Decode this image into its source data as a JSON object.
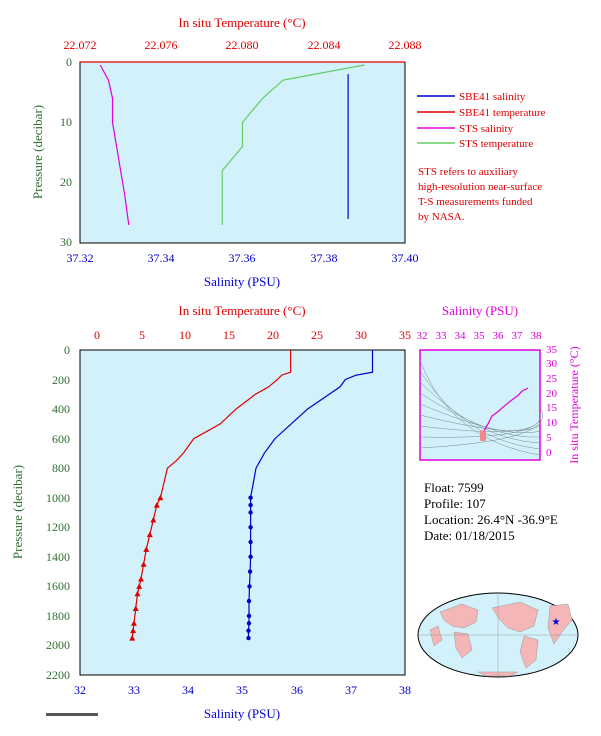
{
  "colors": {
    "plot_bg": "#d3f1fa",
    "red": "#dd0000",
    "blue": "#0000cc",
    "magenta": "#dd00dd",
    "green": "#66cc66",
    "pink": "#f08a8a",
    "dark_green": "#2f6f2f",
    "black": "#000000"
  },
  "top": {
    "top_axis_title": "In situ Temperature (°C)",
    "bottom_axis_title": "Salinity (PSU)",
    "y_axis_title": "Pressure (decibar)",
    "temp_ticks": [
      "22.072",
      "22.076",
      "22.080",
      "22.084",
      "22.088"
    ],
    "sal_ticks": [
      "37.32",
      "37.34",
      "37.36",
      "37.38",
      "37.40"
    ],
    "p_ticks": [
      "0",
      "10",
      "20",
      "30"
    ],
    "legend": [
      {
        "label": "SBE41 salinity",
        "color": "#0000cc"
      },
      {
        "label": "SBE41 temperature",
        "color": "#dd0000"
      },
      {
        "label": "STS salinity",
        "color": "#dd00dd"
      },
      {
        "label": "STS temperature",
        "color": "#66cc66"
      }
    ],
    "note": [
      "STS refers to auxiliary",
      "high-resolution near-surface",
      "T-S measurements funded",
      "by NASA."
    ]
  },
  "main": {
    "top_axis_title": "In situ Temperature (°C)",
    "bottom_axis_title": "Salinity (PSU)",
    "y_axis_title": "Pressure (decibar)",
    "temp_ticks": [
      "0",
      "5",
      "10",
      "15",
      "20",
      "25",
      "30",
      "35"
    ],
    "sal_ticks": [
      "32",
      "33",
      "34",
      "35",
      "36",
      "37",
      "38"
    ],
    "p_ticks": [
      "0",
      "200",
      "400",
      "600",
      "800",
      "1000",
      "1200",
      "1400",
      "1600",
      "1800",
      "2000",
      "2200"
    ]
  },
  "ts": {
    "top_axis_title": "Salinity (PSU)",
    "right_axis_title": "In situ Temperature (°C)",
    "sal_ticks": [
      "32",
      "33",
      "34",
      "35",
      "36",
      "37",
      "38"
    ],
    "temp_ticks": [
      "0",
      "5",
      "10",
      "15",
      "20",
      "25",
      "30",
      "35"
    ]
  },
  "info": {
    "float": "Float:  7599",
    "profile": "Profile:  107",
    "location": "Location:  26.4°N  -36.9°E",
    "date": "Date:  01/18/2015"
  },
  "map": {
    "marker": "★"
  },
  "chart_data": [
    {
      "type": "line",
      "title": "",
      "ylabel": "Pressure (decibar)",
      "xlabel_top": "In situ Temperature (°C)",
      "xlabel_bottom": "Salinity (PSU)",
      "ylim": [
        30,
        0
      ],
      "xlim_salinity": [
        37.32,
        37.4
      ],
      "xlim_temperature": [
        22.072,
        22.088
      ],
      "series": [
        {
          "name": "SBE41 salinity",
          "x": [
            37.386,
            37.386,
            37.386,
            37.386,
            37.386,
            37.386
          ],
          "y": [
            2,
            6,
            10,
            14,
            20,
            26
          ]
        },
        {
          "name": "SBE41 temperature",
          "x": [
            22.072,
            22.088
          ],
          "y": [
            0,
            0
          ]
        },
        {
          "name": "STS salinity",
          "x": [
            37.325,
            37.327,
            37.328,
            37.328,
            37.329,
            37.33,
            37.331,
            37.332
          ],
          "y": [
            0.5,
            3,
            6,
            10,
            14,
            18,
            22,
            27
          ]
        },
        {
          "name": "STS temperature",
          "x": [
            22.086,
            22.082,
            22.081,
            22.08,
            22.08,
            22.079,
            22.079,
            22.079
          ],
          "y": [
            0.5,
            3,
            6,
            10,
            14,
            18,
            22,
            27
          ]
        }
      ]
    },
    {
      "type": "line",
      "title": "",
      "ylabel": "Pressure (decibar)",
      "xlabel_top": "In situ Temperature (°C)",
      "xlabel_bottom": "Salinity (PSU)",
      "ylim": [
        2200,
        0
      ],
      "xlim_salinity": [
        32,
        38
      ],
      "xlim_temperature": [
        0,
        35
      ],
      "series": [
        {
          "name": "Temperature",
          "x": [
            22.0,
            22.0,
            21.0,
            20.5,
            19.5,
            18.0,
            15.8,
            14.0,
            12.5,
            11.0,
            9.8,
            9.0,
            8.0,
            7.6,
            7.2,
            6.8,
            6.4,
            6.0,
            5.6,
            5.3,
            5.0,
            4.8,
            4.6,
            4.4,
            4.2,
            4.1,
            4.0
          ],
          "y": [
            0,
            150,
            170,
            200,
            250,
            300,
            400,
            500,
            550,
            600,
            700,
            750,
            800,
            900,
            1000,
            1050,
            1150,
            1250,
            1350,
            1450,
            1550,
            1600,
            1650,
            1750,
            1850,
            1900,
            1950
          ]
        },
        {
          "name": "Salinity",
          "x": [
            37.4,
            37.4,
            37.1,
            36.9,
            36.8,
            36.6,
            36.2,
            35.9,
            35.6,
            35.4,
            35.25,
            35.2,
            35.15,
            35.15,
            35.15,
            35.15,
            35.15,
            35.15,
            35.14,
            35.13,
            35.12,
            35.12,
            35.12,
            35.11,
            35.11
          ],
          "y": [
            0,
            150,
            170,
            200,
            250,
            300,
            400,
            500,
            600,
            700,
            800,
            900,
            1000,
            1050,
            1100,
            1200,
            1300,
            1400,
            1500,
            1600,
            1700,
            1800,
            1850,
            1900,
            1950
          ]
        }
      ]
    },
    {
      "type": "scatter",
      "title": "",
      "xlabel": "Salinity (PSU)",
      "ylabel": "In situ Temperature (°C)",
      "xlim": [
        32,
        38
      ],
      "ylim": [
        -2.5,
        35
      ],
      "series": [
        {
          "name": "T-S",
          "x": [
            35.15,
            35.15,
            35.2,
            35.4,
            35.6,
            35.9,
            36.2,
            36.6,
            36.9,
            37.1,
            37.4
          ],
          "y": [
            4.0,
            6.0,
            7.5,
            9.8,
            12.5,
            14.0,
            15.8,
            18.0,
            19.5,
            21.0,
            22.0
          ]
        }
      ]
    }
  ]
}
